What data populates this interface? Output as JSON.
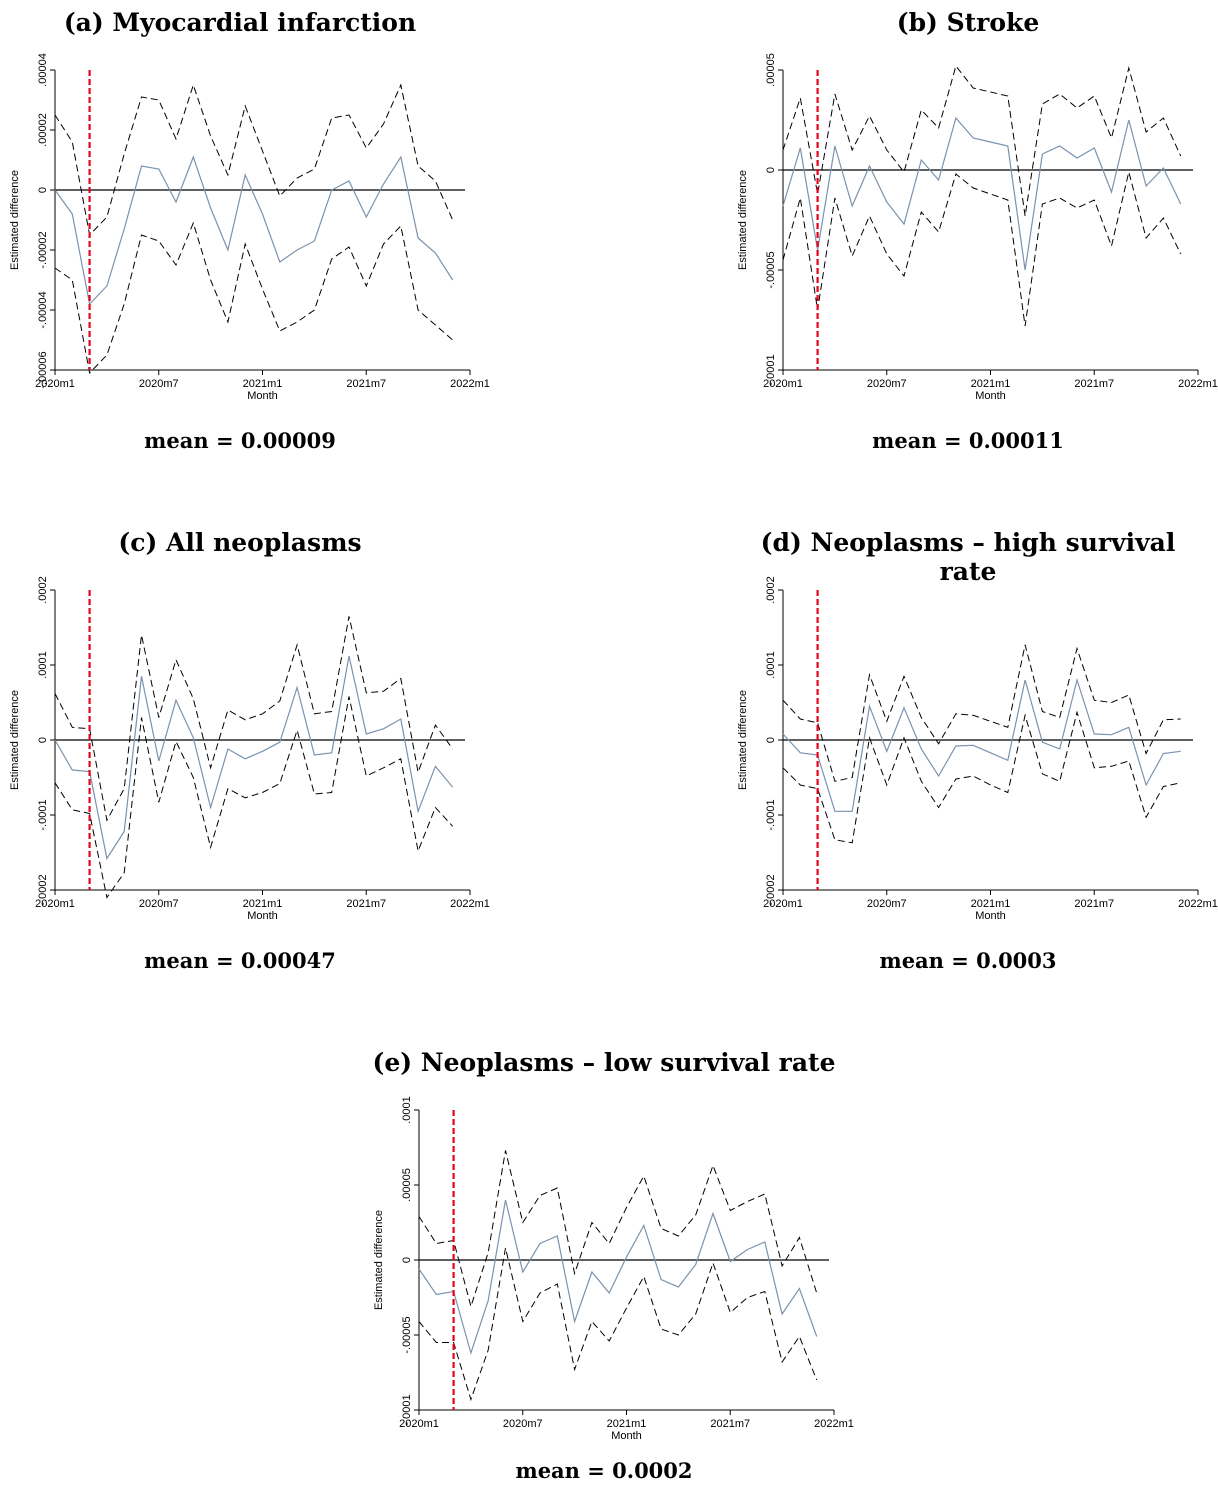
{
  "colors": {
    "estimate": "#7a93ad",
    "ci": "#000000",
    "zero_line": "#000000",
    "event_line": "#e8001c"
  },
  "chart_data": [
    {
      "type": "line",
      "panel_label": "(a) Myocardial infarction",
      "mean_text": "mean = 0.00009",
      "xlabel": "Month",
      "ylabel": "Estimated difference",
      "x": [
        0,
        1,
        2,
        3,
        4,
        5,
        6,
        7,
        8,
        9,
        10,
        11,
        12,
        13,
        14,
        15,
        16,
        17,
        18,
        19,
        20,
        21,
        22,
        23
      ],
      "x_ticks": [
        {
          "pos": 0,
          "label": "2020m1"
        },
        {
          "pos": 6,
          "label": "2020m7"
        },
        {
          "pos": 12,
          "label": "2021m1"
        },
        {
          "pos": 18,
          "label": "2021m7"
        },
        {
          "pos": 24,
          "label": "2022m1"
        }
      ],
      "xlim": [
        0,
        24
      ],
      "ylim": [
        -6e-05,
        4e-05
      ],
      "y_ticks": [
        {
          "v": 4e-05,
          "label": ".00004"
        },
        {
          "v": 2e-05,
          "label": ".00002"
        },
        {
          "v": 0,
          "label": "0"
        },
        {
          "v": -2e-05,
          "label": "-.00002"
        },
        {
          "v": -4e-05,
          "label": "-.00004"
        },
        {
          "v": -6e-05,
          "label": "-.00006"
        }
      ],
      "vline_x": 2,
      "zero_line": 0,
      "series": [
        {
          "role": "estimate",
          "values": [
            0,
            -8e-06,
            -3.8e-05,
            -3.2e-05,
            -1.3e-05,
            8e-06,
            7e-06,
            -4e-06,
            1.1e-05,
            -6e-06,
            -2e-05,
            5e-06,
            -8e-06,
            -2.4e-05,
            -2e-05,
            -1.7e-05,
            0,
            3e-06,
            -9e-06,
            2e-06,
            1.1e-05,
            -1.6e-05,
            -2.1e-05,
            -3e-05
          ]
        },
        {
          "role": "upper",
          "values": [
            2.5e-05,
            1.6e-05,
            -1.5e-05,
            -9e-06,
            1.2e-05,
            3.1e-05,
            3e-05,
            1.7e-05,
            3.5e-05,
            1.8e-05,
            5e-06,
            2.8e-05,
            1.3e-05,
            -2e-06,
            4e-06,
            7e-06,
            2.4e-05,
            2.5e-05,
            1.4e-05,
            2.2e-05,
            3.5e-05,
            8e-06,
            3e-06,
            -1e-05
          ]
        },
        {
          "role": "lower",
          "values": [
            -2.6e-05,
            -3e-05,
            -6.1e-05,
            -5.5e-05,
            -3.8e-05,
            -1.5e-05,
            -1.7e-05,
            -2.5e-05,
            -1.1e-05,
            -3e-05,
            -4.4e-05,
            -1.8e-05,
            -3.3e-05,
            -4.7e-05,
            -4.4e-05,
            -4e-05,
            -2.3e-05,
            -1.9e-05,
            -3.2e-05,
            -1.8e-05,
            -1.2e-05,
            -4e-05,
            -4.5e-05,
            -5e-05
          ]
        }
      ]
    },
    {
      "type": "line",
      "panel_label": "(b) Stroke",
      "mean_text": "mean = 0.00011",
      "xlabel": "Month",
      "ylabel": "Estimated difference",
      "x": [
        0,
        1,
        2,
        3,
        4,
        5,
        6,
        7,
        8,
        9,
        10,
        11,
        12,
        13,
        14,
        15,
        16,
        17,
        18,
        19,
        20,
        21,
        22,
        23
      ],
      "x_ticks": [
        {
          "pos": 0,
          "label": "2020m1"
        },
        {
          "pos": 6,
          "label": "2020m7"
        },
        {
          "pos": 12,
          "label": "2021m1"
        },
        {
          "pos": 18,
          "label": "2021m7"
        },
        {
          "pos": 24,
          "label": "2022m1"
        }
      ],
      "xlim": [
        0,
        24
      ],
      "ylim": [
        -0.0001,
        5e-05
      ],
      "y_ticks": [
        {
          "v": 5e-05,
          "label": ".00005"
        },
        {
          "v": 0,
          "label": "0"
        },
        {
          "v": -5e-05,
          "label": "-.00005"
        },
        {
          "v": -0.0001,
          "label": "-.0001"
        }
      ],
      "vline_x": 2,
      "zero_line": 0,
      "series": [
        {
          "role": "estimate",
          "values": [
            -1.8e-05,
            1.1e-05,
            -4e-05,
            1.2e-05,
            -1.8e-05,
            2e-06,
            -1.6e-05,
            -2.7e-05,
            5e-06,
            -5e-06,
            2.6e-05,
            1.6e-05,
            1.4e-05,
            1.2e-05,
            -5e-05,
            8e-06,
            1.2e-05,
            6e-06,
            1.1e-05,
            -1.1e-05,
            2.5e-05,
            -8e-06,
            1e-06,
            -1.7e-05
          ]
        },
        {
          "role": "upper",
          "values": [
            1e-05,
            3.6e-05,
            -1.2e-05,
            3.8e-05,
            1e-05,
            2.7e-05,
            1e-05,
            -1e-06,
            3e-05,
            2.1e-05,
            5.2e-05,
            4.1e-05,
            3.9e-05,
            3.7e-05,
            -2.3e-05,
            3.3e-05,
            3.8e-05,
            3.1e-05,
            3.7e-05,
            1.6e-05,
            5.1e-05,
            1.9e-05,
            2.6e-05,
            7e-06
          ]
        },
        {
          "role": "lower",
          "values": [
            -4.5e-05,
            -1.4e-05,
            -7e-05,
            -1.4e-05,
            -4.3e-05,
            -2.3e-05,
            -4.2e-05,
            -5.3e-05,
            -2.1e-05,
            -3.1e-05,
            -2e-06,
            -9e-06,
            -1.2e-05,
            -1.5e-05,
            -7.8e-05,
            -1.7e-05,
            -1.4e-05,
            -1.9e-05,
            -1.5e-05,
            -3.8e-05,
            -1e-06,
            -3.4e-05,
            -2.4e-05,
            -4.2e-05
          ]
        }
      ]
    },
    {
      "type": "line",
      "panel_label": "(c) All neoplasms",
      "mean_text": "mean = 0.00047",
      "xlabel": "Month",
      "ylabel": "Estimated difference",
      "x": [
        0,
        1,
        2,
        3,
        4,
        5,
        6,
        7,
        8,
        9,
        10,
        11,
        12,
        13,
        14,
        15,
        16,
        17,
        18,
        19,
        20,
        21,
        22,
        23
      ],
      "x_ticks": [
        {
          "pos": 0,
          "label": "2020m1"
        },
        {
          "pos": 6,
          "label": "2020m7"
        },
        {
          "pos": 12,
          "label": "2021m1"
        },
        {
          "pos": 18,
          "label": "2021m7"
        },
        {
          "pos": 24,
          "label": "2022m1"
        }
      ],
      "xlim": [
        0,
        24
      ],
      "ylim": [
        -0.0002,
        0.0002
      ],
      "y_ticks": [
        {
          "v": 0.0002,
          "label": ".0002"
        },
        {
          "v": 0.0001,
          "label": ".0001"
        },
        {
          "v": 0,
          "label": "0"
        },
        {
          "v": -0.0001,
          "label": "-.0001"
        },
        {
          "v": -0.0002,
          "label": "-.0002"
        }
      ],
      "vline_x": 2,
      "zero_line": 0,
      "series": [
        {
          "role": "estimate",
          "values": [
            0,
            -4e-05,
            -4.2e-05,
            -0.000158,
            -0.000122,
            8.5e-05,
            -2.8e-05,
            5.3e-05,
            3e-06,
            -9e-05,
            -1.2e-05,
            -2.5e-05,
            -1.5e-05,
            -3e-06,
            7e-05,
            -2e-05,
            -1.7e-05,
            0.000112,
            8e-06,
            1.5e-05,
            2.8e-05,
            -9.5e-05,
            -3.5e-05,
            -6.3e-05
          ]
        },
        {
          "role": "upper",
          "values": [
            6.2e-05,
            1.7e-05,
            1.5e-05,
            -0.000107,
            -6.5e-05,
            0.00014,
            3e-05,
            0.000107,
            5.5e-05,
            -3.7e-05,
            4e-05,
            2.7e-05,
            3.5e-05,
            5.2e-05,
            0.000127,
            3.5e-05,
            3.8e-05,
            0.000165,
            6.3e-05,
            6.5e-05,
            8.2e-05,
            -4.3e-05,
            2e-05,
            -1.2e-05
          ]
        },
        {
          "role": "lower",
          "values": [
            -5.7e-05,
            -9.3e-05,
            -9.8e-05,
            -0.00021,
            -0.000177,
            3e-05,
            -8.3e-05,
            -2e-06,
            -5e-05,
            -0.000143,
            -6.5e-05,
            -7.7e-05,
            -7e-05,
            -5.8e-05,
            1.3e-05,
            -7.2e-05,
            -7e-05,
            5.8e-05,
            -4.8e-05,
            -3.7e-05,
            -2.5e-05,
            -0.000148,
            -9e-05,
            -0.000115
          ]
        }
      ]
    },
    {
      "type": "line",
      "panel_label": "(d) Neoplasms – high survival rate",
      "mean_text": "mean = 0.0003",
      "xlabel": "Month",
      "ylabel": "Estimated difference",
      "x": [
        0,
        1,
        2,
        3,
        4,
        5,
        6,
        7,
        8,
        9,
        10,
        11,
        12,
        13,
        14,
        15,
        16,
        17,
        18,
        19,
        20,
        21,
        22,
        23
      ],
      "x_ticks": [
        {
          "pos": 0,
          "label": "2020m1"
        },
        {
          "pos": 6,
          "label": "2020m7"
        },
        {
          "pos": 12,
          "label": "2021m1"
        },
        {
          "pos": 18,
          "label": "2021m7"
        },
        {
          "pos": 24,
          "label": "2022m1"
        }
      ],
      "xlim": [
        0,
        24
      ],
      "ylim": [
        -0.0002,
        0.0002
      ],
      "y_ticks": [
        {
          "v": 0.0002,
          "label": ".0002"
        },
        {
          "v": 0.0001,
          "label": ".0001"
        },
        {
          "v": 0,
          "label": "0"
        },
        {
          "v": -0.0001,
          "label": "-.0001"
        },
        {
          "v": -0.0002,
          "label": "-.0002"
        }
      ],
      "vline_x": 2,
      "zero_line": 0,
      "series": [
        {
          "role": "estimate",
          "values": [
            8e-06,
            -1.7e-05,
            -2e-05,
            -9.5e-05,
            -9.5e-05,
            4.5e-05,
            -1.5e-05,
            4.3e-05,
            -1.2e-05,
            -4.8e-05,
            -8e-06,
            -7e-06,
            -1.7e-05,
            -2.7e-05,
            8e-05,
            -3e-06,
            -1.2e-05,
            8e-05,
            8e-06,
            7e-06,
            1.7e-05,
            -6e-05,
            -1.8e-05,
            -1.5e-05
          ]
        },
        {
          "role": "upper",
          "values": [
            5.3e-05,
            2.8e-05,
            2.3e-05,
            -5.5e-05,
            -5e-05,
            8.7e-05,
            2.5e-05,
            8.5e-05,
            3e-05,
            -5e-06,
            3.5e-05,
            3.3e-05,
            2.5e-05,
            1.7e-05,
            0.000127,
            3.8e-05,
            3e-05,
            0.000122,
            5.3e-05,
            5e-05,
            6e-05,
            -1.8e-05,
            2.7e-05,
            2.8e-05
          ]
        },
        {
          "role": "lower",
          "values": [
            -3.7e-05,
            -6e-05,
            -6.5e-05,
            -0.000133,
            -0.000137,
            3e-06,
            -6e-05,
            3e-06,
            -5.5e-05,
            -9e-05,
            -5.2e-05,
            -4.8e-05,
            -6e-05,
            -7e-05,
            3.3e-05,
            -4.5e-05,
            -5.5e-05,
            3.7e-05,
            -3.7e-05,
            -3.5e-05,
            -2.8e-05,
            -0.000103,
            -6.2e-05,
            -5.7e-05
          ]
        }
      ]
    },
    {
      "type": "line",
      "panel_label": "(e) Neoplasms – low survival rate",
      "mean_text": "mean = 0.0002",
      "xlabel": "Month",
      "ylabel": "Estimated difference",
      "x": [
        0,
        1,
        2,
        3,
        4,
        5,
        6,
        7,
        8,
        9,
        10,
        11,
        12,
        13,
        14,
        15,
        16,
        17,
        18,
        19,
        20,
        21,
        22,
        23
      ],
      "x_ticks": [
        {
          "pos": 0,
          "label": "2020m1"
        },
        {
          "pos": 6,
          "label": "2020m7"
        },
        {
          "pos": 12,
          "label": "2021m1"
        },
        {
          "pos": 18,
          "label": "2021m7"
        },
        {
          "pos": 24,
          "label": "2022m1"
        }
      ],
      "xlim": [
        0,
        24
      ],
      "ylim": [
        -0.0001,
        0.0001
      ],
      "y_ticks": [
        {
          "v": 0.0001,
          "label": ".0001"
        },
        {
          "v": 5e-05,
          "label": ".00005"
        },
        {
          "v": 0,
          "label": "0"
        },
        {
          "v": -5e-05,
          "label": "-.00005"
        },
        {
          "v": -0.0001,
          "label": "-.0001"
        }
      ],
      "vline_x": 2,
      "zero_line": 0,
      "series": [
        {
          "role": "estimate",
          "values": [
            -6e-06,
            -2.3e-05,
            -2.1e-05,
            -6.2e-05,
            -2.7e-05,
            4e-05,
            -8e-06,
            1.1e-05,
            1.6e-05,
            -4.1e-05,
            -8e-06,
            -2.2e-05,
            2e-06,
            2.3e-05,
            -1.3e-05,
            -1.8e-05,
            -3e-06,
            3.1e-05,
            -1e-06,
            7e-06,
            1.2e-05,
            -3.6e-05,
            -1.9e-05,
            -5.1e-05
          ]
        },
        {
          "role": "upper",
          "values": [
            2.9e-05,
            1.1e-05,
            1.3e-05,
            -3.1e-05,
            5e-06,
            7.3e-05,
            2.5e-05,
            4.3e-05,
            4.8e-05,
            -9e-06,
            2.5e-05,
            1.1e-05,
            3.5e-05,
            5.6e-05,
            2.1e-05,
            1.6e-05,
            3e-05,
            6.3e-05,
            3.3e-05,
            3.9e-05,
            4.4e-05,
            -4e-06,
            1.5e-05,
            -2.2e-05
          ]
        },
        {
          "role": "lower",
          "values": [
            -4.1e-05,
            -5.5e-05,
            -5.5e-05,
            -9.3e-05,
            -6e-05,
            8e-06,
            -4.1e-05,
            -2.2e-05,
            -1.6e-05,
            -7.3e-05,
            -4.1e-05,
            -5.4e-05,
            -3.2e-05,
            -1.1e-05,
            -4.6e-05,
            -5e-05,
            -3.6e-05,
            -2e-06,
            -3.5e-05,
            -2.5e-05,
            -2.1e-05,
            -6.8e-05,
            -5.1e-05,
            -8e-05
          ]
        }
      ]
    }
  ]
}
